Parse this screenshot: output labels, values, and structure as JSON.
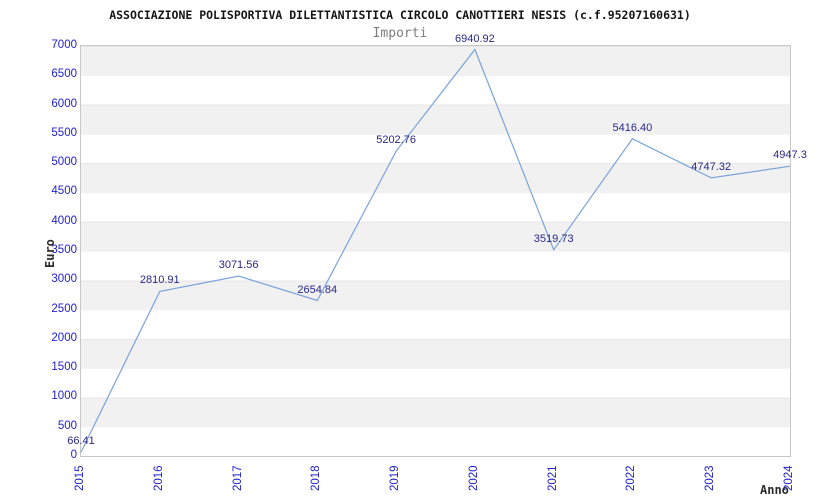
{
  "chart_data": {
    "type": "line",
    "title": "ASSOCIAZIONE POLISPORTIVA DILETTANTISTICA CIRCOLO CANOTTIERI NESIS (c.f.95207160631)",
    "subtitle": "Importi",
    "xlabel": "Anno",
    "ylabel": "Euro",
    "x": [
      2015,
      2016,
      2017,
      2018,
      2019,
      2020,
      2021,
      2022,
      2023,
      2024
    ],
    "values": [
      66.41,
      2810.91,
      3071.56,
      2654.84,
      5202.76,
      6940.92,
      3519.73,
      5416.4,
      4747.32,
      4947.3
    ],
    "point_labels": [
      "66.41",
      "2810.91",
      "3071.56",
      "2654.84",
      "5202.76",
      "6940.92",
      "3519.73",
      "5416.40",
      "4747.32",
      "4947.3"
    ],
    "ylim": [
      0,
      7000
    ],
    "ytick_step": 500,
    "grid": "horizontal-bands-alternating",
    "legend": "none",
    "colors": {
      "line": "#7ba3da",
      "tick_labels": "#2222cc",
      "point_labels": "#28288a",
      "band_gray": "#f1f1f1",
      "plot_border": "#c8c8c8"
    }
  }
}
